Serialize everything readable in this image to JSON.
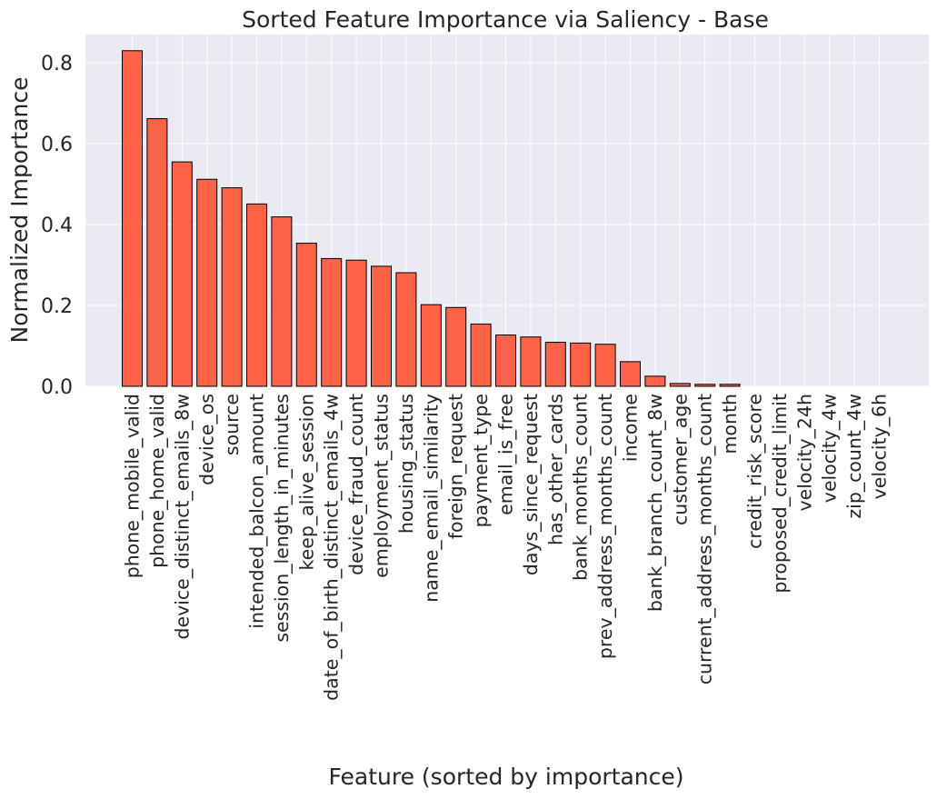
{
  "chart_data": {
    "type": "bar",
    "title": "Sorted Feature Importance via Saliency - Base",
    "xlabel": "Feature (sorted by importance)",
    "ylabel": "Normalized Importance",
    "ylim": [
      0,
      0.87
    ],
    "yticks": [
      "0.0",
      "0.2",
      "0.4",
      "0.6",
      "0.8"
    ],
    "grid": true,
    "legend": "none",
    "colors": {
      "bar": "#ff6347",
      "edge": "#000000",
      "background": "#eaeaf2"
    },
    "categories": [
      "phone_mobile_valid",
      "phone_home_valid",
      "device_distinct_emails_8w",
      "device_os",
      "source",
      "intended_balcon_amount",
      "session_length_in_minutes",
      "keep_alive_session",
      "date_of_birth_distinct_emails_4w",
      "device_fraud_count",
      "employment_status",
      "housing_status",
      "name_email_similarity",
      "foreign_request",
      "payment_type",
      "email_is_free",
      "days_since_request",
      "has_other_cards",
      "bank_months_count",
      "prev_address_months_count",
      "income",
      "bank_branch_count_8w",
      "customer_age",
      "current_address_months_count",
      "month",
      "credit_risk_score",
      "proposed_credit_limit",
      "velocity_24h",
      "velocity_4w",
      "zip_count_4w",
      "velocity_6h"
    ],
    "values": [
      0.83,
      0.662,
      0.555,
      0.512,
      0.491,
      0.451,
      0.419,
      0.354,
      0.316,
      0.312,
      0.297,
      0.281,
      0.202,
      0.195,
      0.154,
      0.127,
      0.122,
      0.109,
      0.107,
      0.104,
      0.061,
      0.025,
      0.007,
      0.005,
      0.005,
      0.0,
      0.0,
      0.0,
      0.0,
      0.0,
      0.0
    ]
  }
}
